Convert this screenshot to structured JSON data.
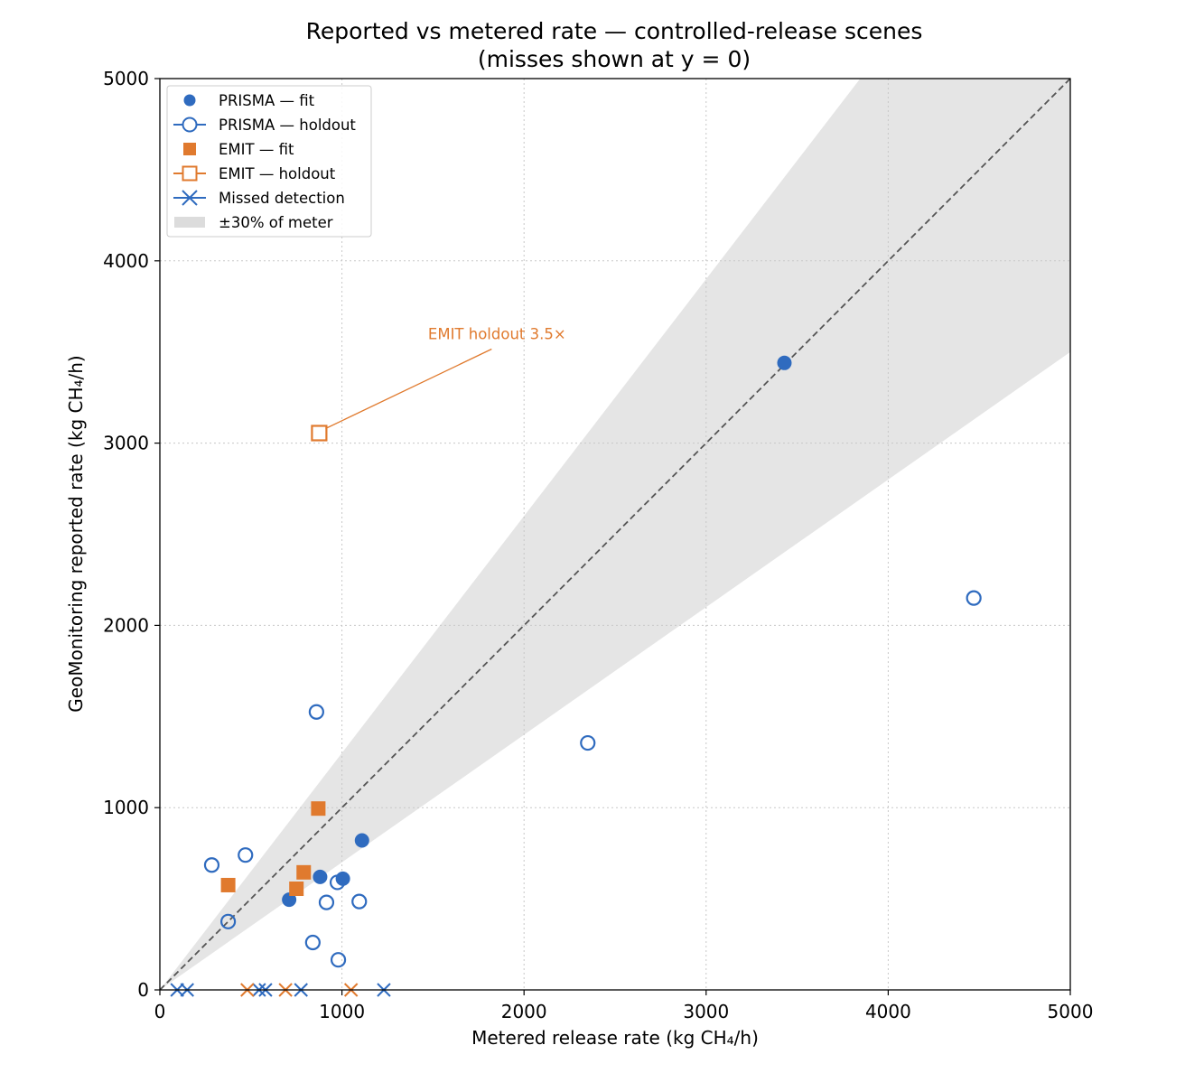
{
  "chart_data": {
    "type": "scatter",
    "title": "Reported vs metered rate — controlled-release scenes",
    "subtitle": "(misses shown at y = 0)",
    "xlabel": "Metered release rate (kg CH₄/h)",
    "ylabel": "GeoMonitoring reported rate (kg CH₄/h)",
    "xlim": [
      0,
      5000
    ],
    "ylim": [
      0,
      5000
    ],
    "xticks": [
      0,
      1000,
      2000,
      3000,
      4000,
      5000
    ],
    "yticks": [
      0,
      1000,
      2000,
      3000,
      4000,
      5000
    ],
    "grid": true,
    "legend_position": "top-left",
    "band_fraction": 0.3,
    "colors": {
      "prisma": "#2f6bbf",
      "emit": "#e07a2e",
      "band": "#e5e5e5",
      "identity": "#555555"
    },
    "legend": [
      {
        "label": "PRISMA — fit",
        "marker": "filled-circle",
        "color": "#2f6bbf"
      },
      {
        "label": "PRISMA — holdout",
        "marker": "open-circle",
        "color": "#2f6bbf"
      },
      {
        "label": "EMIT — fit",
        "marker": "filled-square",
        "color": "#e07a2e"
      },
      {
        "label": "EMIT — holdout",
        "marker": "open-square",
        "color": "#e07a2e"
      },
      {
        "label": "Missed detection",
        "marker": "x",
        "color": "#2f6bbf"
      },
      {
        "label": "±30% of meter",
        "marker": "band",
        "color": "#dcdcdc"
      }
    ],
    "series": [
      {
        "key": "prisma_fit",
        "marker": "filled-circle",
        "color": "#2f6bbf",
        "points": [
          [
            710,
            495
          ],
          [
            880,
            620
          ],
          [
            1005,
            610
          ],
          [
            1110,
            820
          ],
          [
            3430,
            3440
          ]
        ]
      },
      {
        "key": "prisma_holdout",
        "marker": "open-circle",
        "color": "#2f6bbf",
        "points": [
          [
            285,
            685
          ],
          [
            470,
            740
          ],
          [
            375,
            375
          ],
          [
            860,
            1525
          ],
          [
            975,
            590
          ],
          [
            915,
            480
          ],
          [
            1095,
            485
          ],
          [
            840,
            260
          ],
          [
            980,
            165
          ],
          [
            2350,
            1355
          ],
          [
            4470,
            2150
          ]
        ]
      },
      {
        "key": "emit_fit",
        "marker": "filled-square",
        "color": "#e07a2e",
        "points": [
          [
            375,
            575
          ],
          [
            790,
            645
          ],
          [
            750,
            555
          ],
          [
            870,
            995
          ]
        ]
      },
      {
        "key": "emit_holdout",
        "marker": "open-square",
        "color": "#e07a2e",
        "points": [
          [
            875,
            3055
          ]
        ]
      },
      {
        "key": "prisma_missed",
        "marker": "x",
        "color": "#2f6bbf",
        "points": [
          [
            95,
            0
          ],
          [
            150,
            0
          ],
          [
            545,
            0
          ],
          [
            580,
            0
          ],
          [
            775,
            0
          ],
          [
            1230,
            0
          ]
        ]
      },
      {
        "key": "emit_missed",
        "marker": "x",
        "color": "#e07a2e",
        "points": [
          [
            480,
            0
          ],
          [
            690,
            0
          ],
          [
            1050,
            0
          ]
        ]
      }
    ],
    "annotations": [
      {
        "text": "EMIT holdout 3.5×",
        "color": "#e07a2e",
        "target": [
          875,
          3055
        ],
        "text_at": [
          1450,
          3600
        ]
      }
    ]
  }
}
